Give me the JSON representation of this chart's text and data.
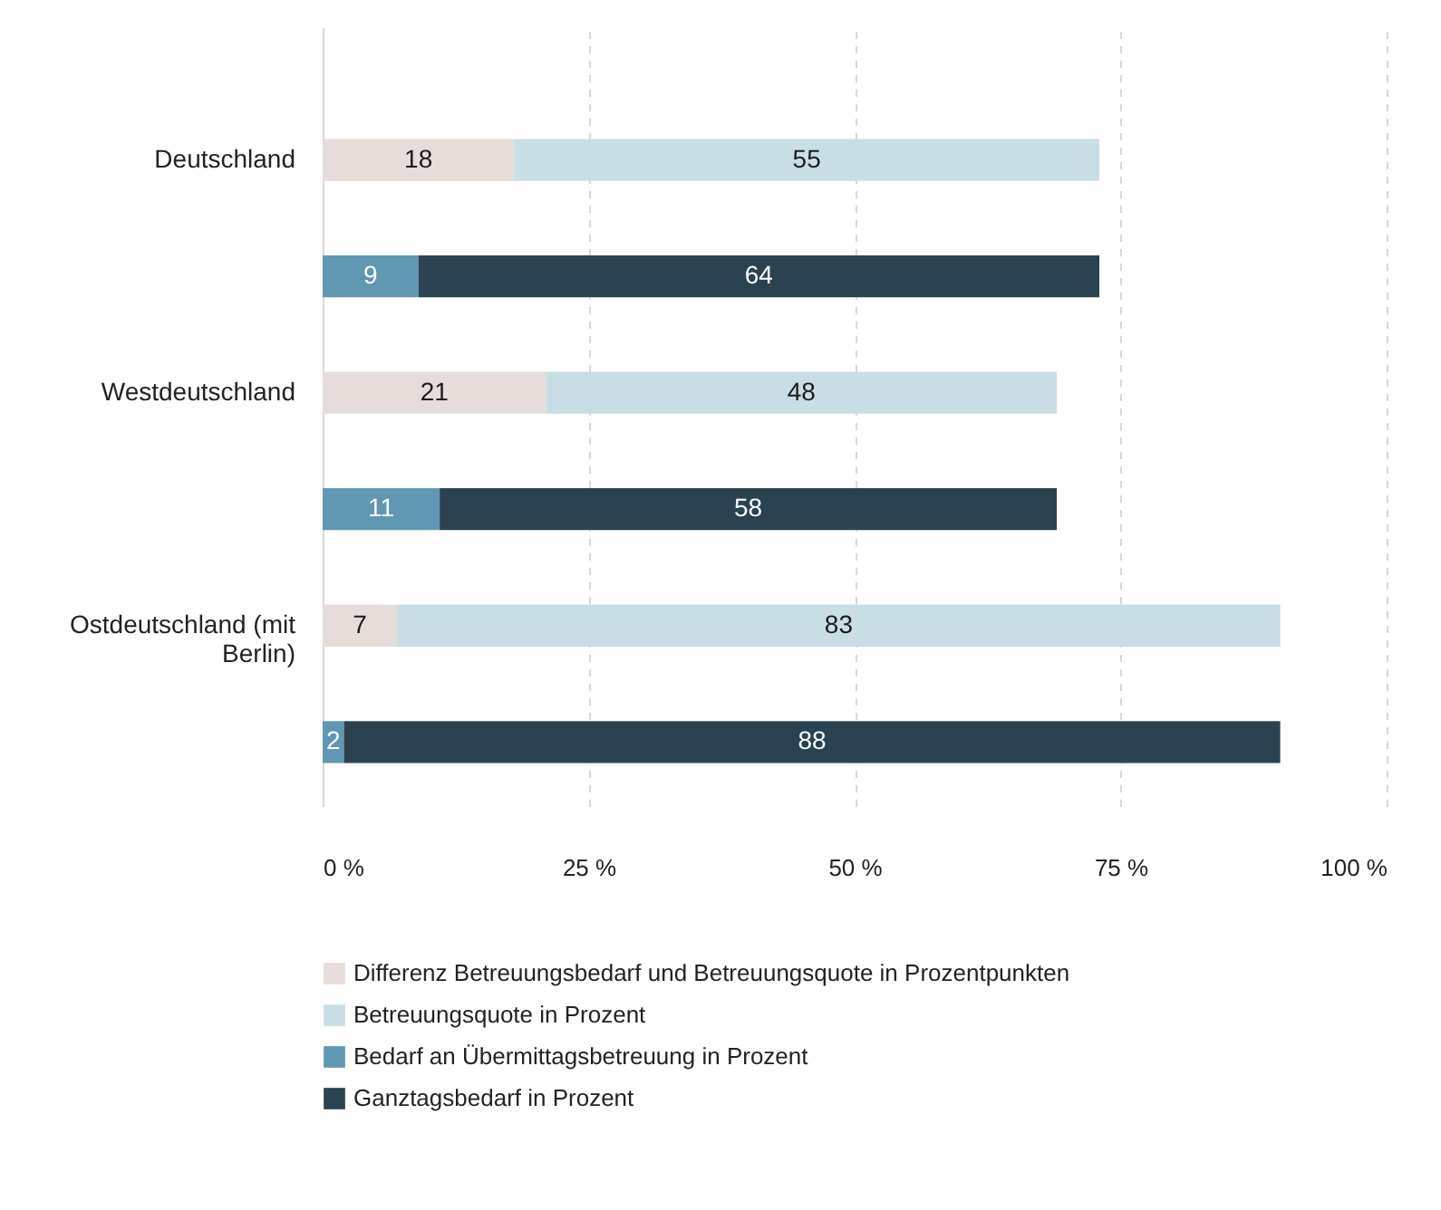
{
  "chart_data": {
    "type": "bar",
    "orientation": "horizontal",
    "stacked": true,
    "categories": [
      "Deutschland",
      null,
      "Westdeutschland",
      null,
      "Ostdeutschland (mit Berlin)",
      null
    ],
    "series": [
      {
        "name": "Differenz Betreuungsbedarf und Betreuungsquote in Prozentpunkten",
        "color": "#e6dcd9",
        "values": [
          18,
          null,
          21,
          null,
          7,
          null
        ]
      },
      {
        "name": "Betreuungsquote in Prozent",
        "color": "#c9dde4",
        "values": [
          55,
          null,
          48,
          null,
          83,
          null
        ]
      },
      {
        "name": "Bedarf an Übermittagsbetreuung in Prozent",
        "color": "#6097b2",
        "values": [
          null,
          9,
          null,
          11,
          null,
          2
        ]
      },
      {
        "name": "Ganztagsbedarf in Prozent",
        "color": "#2b4350",
        "values": [
          null,
          64,
          null,
          58,
          null,
          88
        ]
      }
    ],
    "xlim": [
      0,
      100
    ],
    "xticks": [
      {
        "value": 0,
        "label": "0 %"
      },
      {
        "value": 25,
        "label": "25 %"
      },
      {
        "value": 50,
        "label": "50 %"
      },
      {
        "value": 75,
        "label": "75 %"
      },
      {
        "value": 100,
        "label": "100 %"
      }
    ],
    "grid": "x",
    "legend": "bottom",
    "data_labels": true
  }
}
